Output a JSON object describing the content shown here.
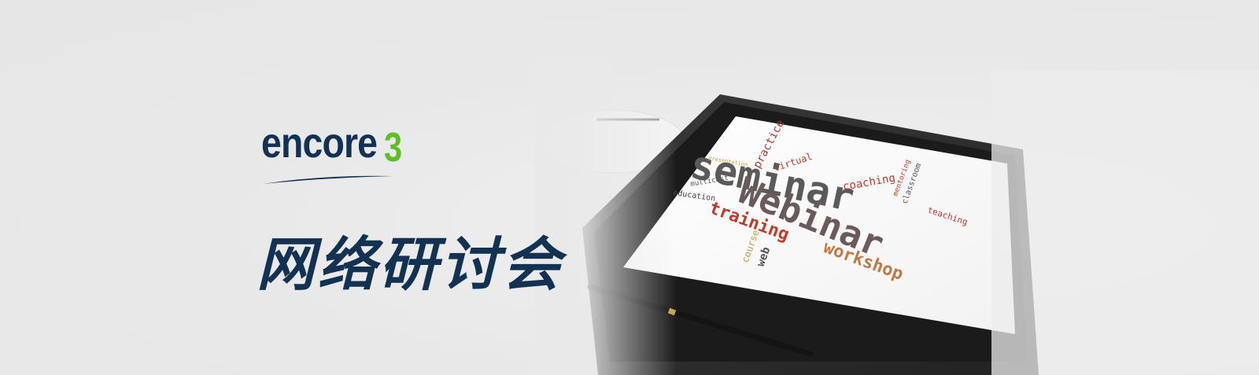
{
  "brand": {
    "name": "encore",
    "suffix": "3",
    "accent_color": "#5bbf27",
    "navy_color": "#133152"
  },
  "headline": "网络研讨会",
  "tablet": {
    "icon": "tablet-icon",
    "words": {
      "seminar": "seminar",
      "webinar": "Webinar",
      "training": "training",
      "workshop": "workshop",
      "practice": "practice",
      "virtual": "virtual",
      "coaching": "coaching",
      "teaching": "teaching",
      "classroom": "classroom",
      "mentoring": "mentoring",
      "presentation": "presentation",
      "multicast": "multicast",
      "education": "education",
      "course": "course",
      "web": "web"
    }
  },
  "pen": {
    "icon": "pen-icon"
  }
}
